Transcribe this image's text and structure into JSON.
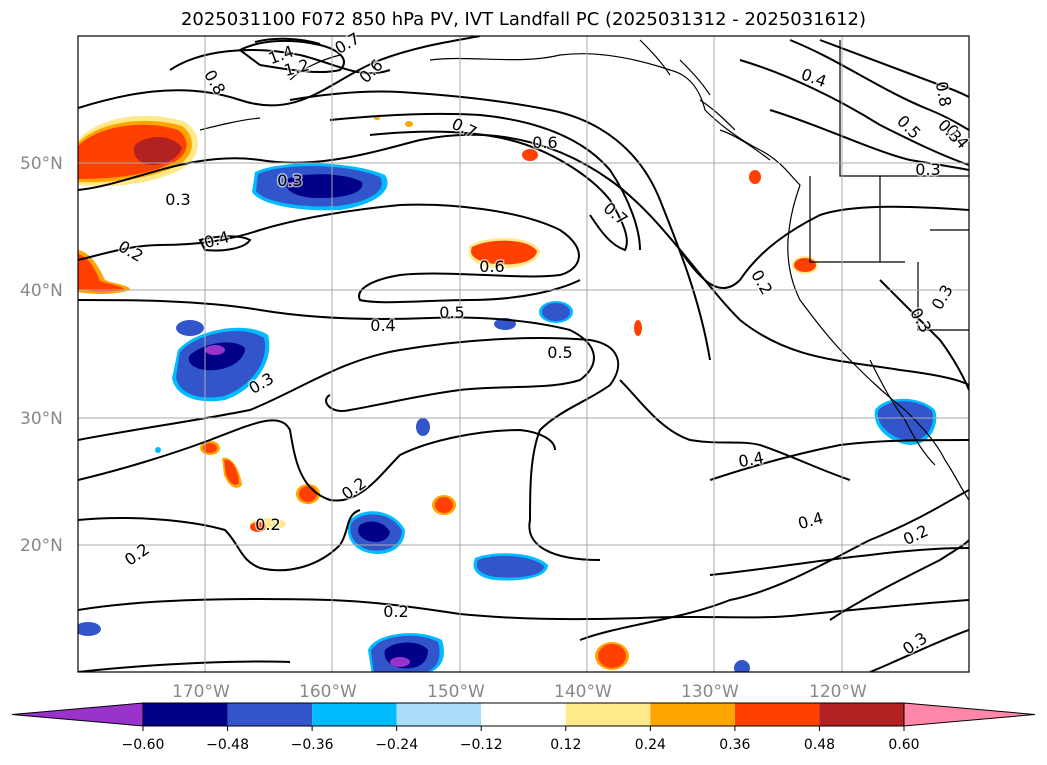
{
  "title": "2025031100 F072 850 hPa PV, IVT Landfall PC (2025031312 - 2025031612)",
  "axes": {
    "lat_labels": [
      "50°N",
      "40°N",
      "30°N",
      "20°N"
    ],
    "lon_labels": [
      "170°W",
      "160°W",
      "150°W",
      "140°W",
      "130°W",
      "120°W"
    ],
    "gridlines": true
  },
  "contour_labels": [
    "1.4",
    "1.2",
    "0.8",
    "0.7",
    "0.6",
    "0.3",
    "0.4",
    "0.8",
    "0.5",
    "0.4",
    "0.3",
    "0.7",
    "0.6",
    "0.3",
    "0.2",
    "0.7",
    "0.6",
    "0.2",
    "0.5",
    "0.4",
    "0.5",
    "0.3",
    "0.2",
    "0.3",
    "0.3",
    "0.4",
    "0.2",
    "0.2",
    "0.4",
    "0.2",
    "0.2",
    "0.3",
    "0.3",
    "0.4"
  ],
  "colorbar": {
    "ticks": [
      "−0.60",
      "−0.48",
      "−0.36",
      "−0.24",
      "−0.12",
      "0.12",
      "0.24",
      "0.36",
      "0.48",
      "0.60"
    ],
    "colors": [
      "#9933cc",
      "#000088",
      "#3355cc",
      "#00bbff",
      "#aaddf8",
      "#ffffff",
      "#ffe98a",
      "#ffa500",
      "#ff4000",
      "#b22222",
      "#ff88aa"
    ]
  },
  "chart_data": {
    "type": "heatmap",
    "title": "2025031100 F072 850 hPa PV, IVT Landfall PC (2025031312 - 2025031612)",
    "fields": [
      "850 hPa PV (contours)",
      "IVT Landfall PC (shaded)"
    ],
    "lat_range": [
      10,
      60
    ],
    "lon_range": [
      -180,
      -110
    ],
    "contour_levels": [
      0.2,
      0.3,
      0.4,
      0.5,
      0.6,
      0.7,
      0.8,
      1.2,
      1.4
    ],
    "shading_levels": [
      -0.6,
      -0.48,
      -0.36,
      -0.24,
      -0.12,
      0.12,
      0.24,
      0.36,
      0.48,
      0.6
    ],
    "features": [
      {
        "sign": "positive",
        "lat": 52,
        "lon": -175,
        "peak": 0.5
      },
      {
        "sign": "positive",
        "lat": 42.5,
        "lon": -148,
        "peak": 0.36
      },
      {
        "sign": "positive",
        "lat": 42,
        "lon": -180,
        "peak": 0.36
      },
      {
        "sign": "positive",
        "lat": 48.5,
        "lon": -126,
        "peak": 0.36
      },
      {
        "sign": "positive",
        "lat": 42,
        "lon": -122,
        "peak": 0.36
      },
      {
        "sign": "positive",
        "lat": 25,
        "lon": -167,
        "peak": 0.36
      },
      {
        "sign": "positive",
        "lat": 24,
        "lon": -161,
        "peak": 0.36
      },
      {
        "sign": "positive",
        "lat": 23,
        "lon": -152,
        "peak": 0.36
      },
      {
        "sign": "positive",
        "lat": 12,
        "lon": -139,
        "peak": 0.36
      },
      {
        "sign": "negative",
        "lat": 49,
        "lon": -161,
        "peak": -0.6
      },
      {
        "sign": "negative",
        "lat": 34.5,
        "lon": -168,
        "peak": -0.6
      },
      {
        "sign": "negative",
        "lat": 20.5,
        "lon": -157,
        "peak": -0.6
      },
      {
        "sign": "negative",
        "lat": 12,
        "lon": -154,
        "peak": -0.6
      },
      {
        "sign": "negative",
        "lat": 30,
        "lon": -114.5,
        "peak": -0.48
      },
      {
        "sign": "negative",
        "lat": 16.5,
        "lon": -147,
        "peak": -0.36
      },
      {
        "sign": "negative",
        "lat": 38.5,
        "lon": -142,
        "peak": -0.36
      }
    ]
  }
}
